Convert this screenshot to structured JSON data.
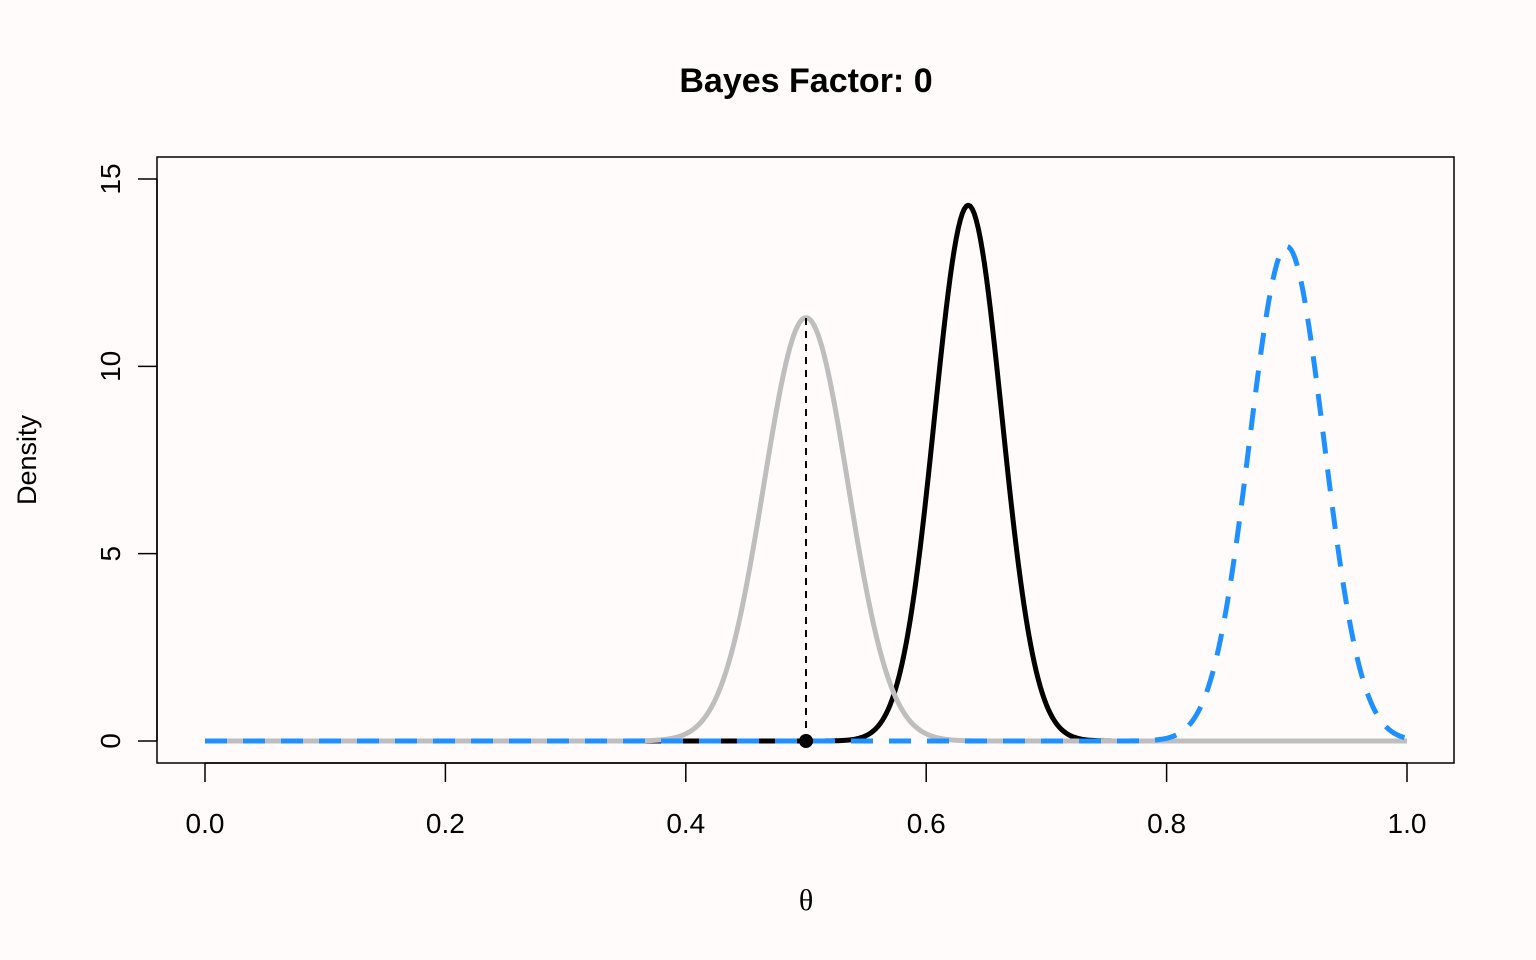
{
  "chart_data": {
    "type": "line",
    "title": "Bayes Factor: 0",
    "xlabel": "θ",
    "ylabel": "Density",
    "xlim": [
      0,
      1
    ],
    "ylim": [
      0,
      15
    ],
    "x_ticks": [
      "0.0",
      "0.2",
      "0.4",
      "0.6",
      "0.8",
      "1.0"
    ],
    "x_tick_values": [
      0,
      0.2,
      0.4,
      0.6,
      0.8,
      1.0
    ],
    "y_ticks": [
      "0",
      "5",
      "10",
      "15"
    ],
    "y_tick_values": [
      0,
      5,
      10,
      15
    ],
    "grid": false,
    "legend": "none",
    "series": [
      {
        "style": "solid",
        "color": "#bebebe",
        "peak_x": 0.5,
        "peak_y": 11.3,
        "spread": 0.035
      },
      {
        "style": "solid",
        "color": "#000000",
        "peak_x": 0.635,
        "peak_y": 14.3,
        "spread": 0.028
      },
      {
        "style": "dashed",
        "color": "#1e90ff",
        "peak_x": 0.9,
        "peak_y": 13.2,
        "spread": 0.031
      }
    ],
    "reference_line": {
      "x": 0.5,
      "y_from": 0,
      "y_to": 11.3,
      "style": "dashed",
      "color": "#000000"
    },
    "point": {
      "x": 0.5,
      "y": 0,
      "color": "#000000"
    }
  }
}
